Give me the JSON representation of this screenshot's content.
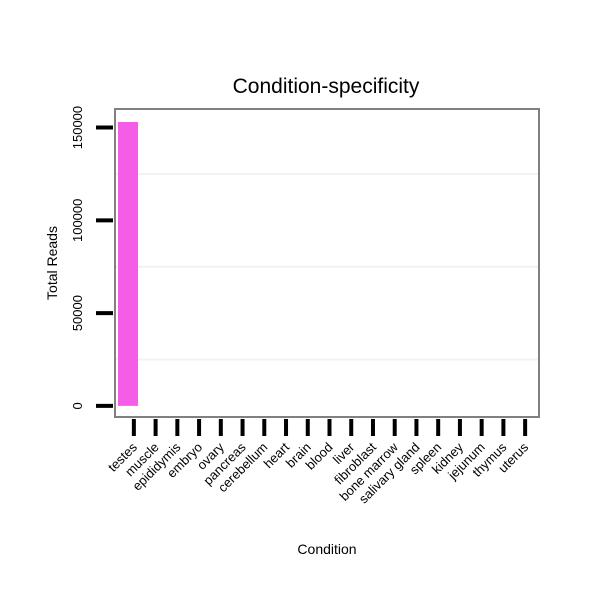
{
  "chart_data": {
    "type": "bar",
    "title": "Condition-specificity",
    "xlabel": "Condition",
    "ylabel": "Total Reads",
    "categories": [
      "testes",
      "muscle",
      "epididymis",
      "embryo",
      "ovary",
      "pancreas",
      "cerebellum",
      "heart",
      "brain",
      "blood",
      "liver",
      "fibroblast",
      "bone marrow",
      "salivary gland",
      "spleen",
      "kidney",
      "jejunum",
      "thymus",
      "uterus"
    ],
    "values": [
      153000,
      0,
      0,
      0,
      0,
      0,
      0,
      0,
      0,
      0,
      0,
      0,
      0,
      0,
      0,
      0,
      0,
      0,
      0
    ],
    "ylim": [
      -6000,
      160000
    ],
    "yticks": [
      0,
      50000,
      100000,
      150000
    ],
    "ytick_labels": [
      "0",
      "50000",
      "100000",
      "150000"
    ],
    "grid": true,
    "bar_color": "#f55de8"
  }
}
